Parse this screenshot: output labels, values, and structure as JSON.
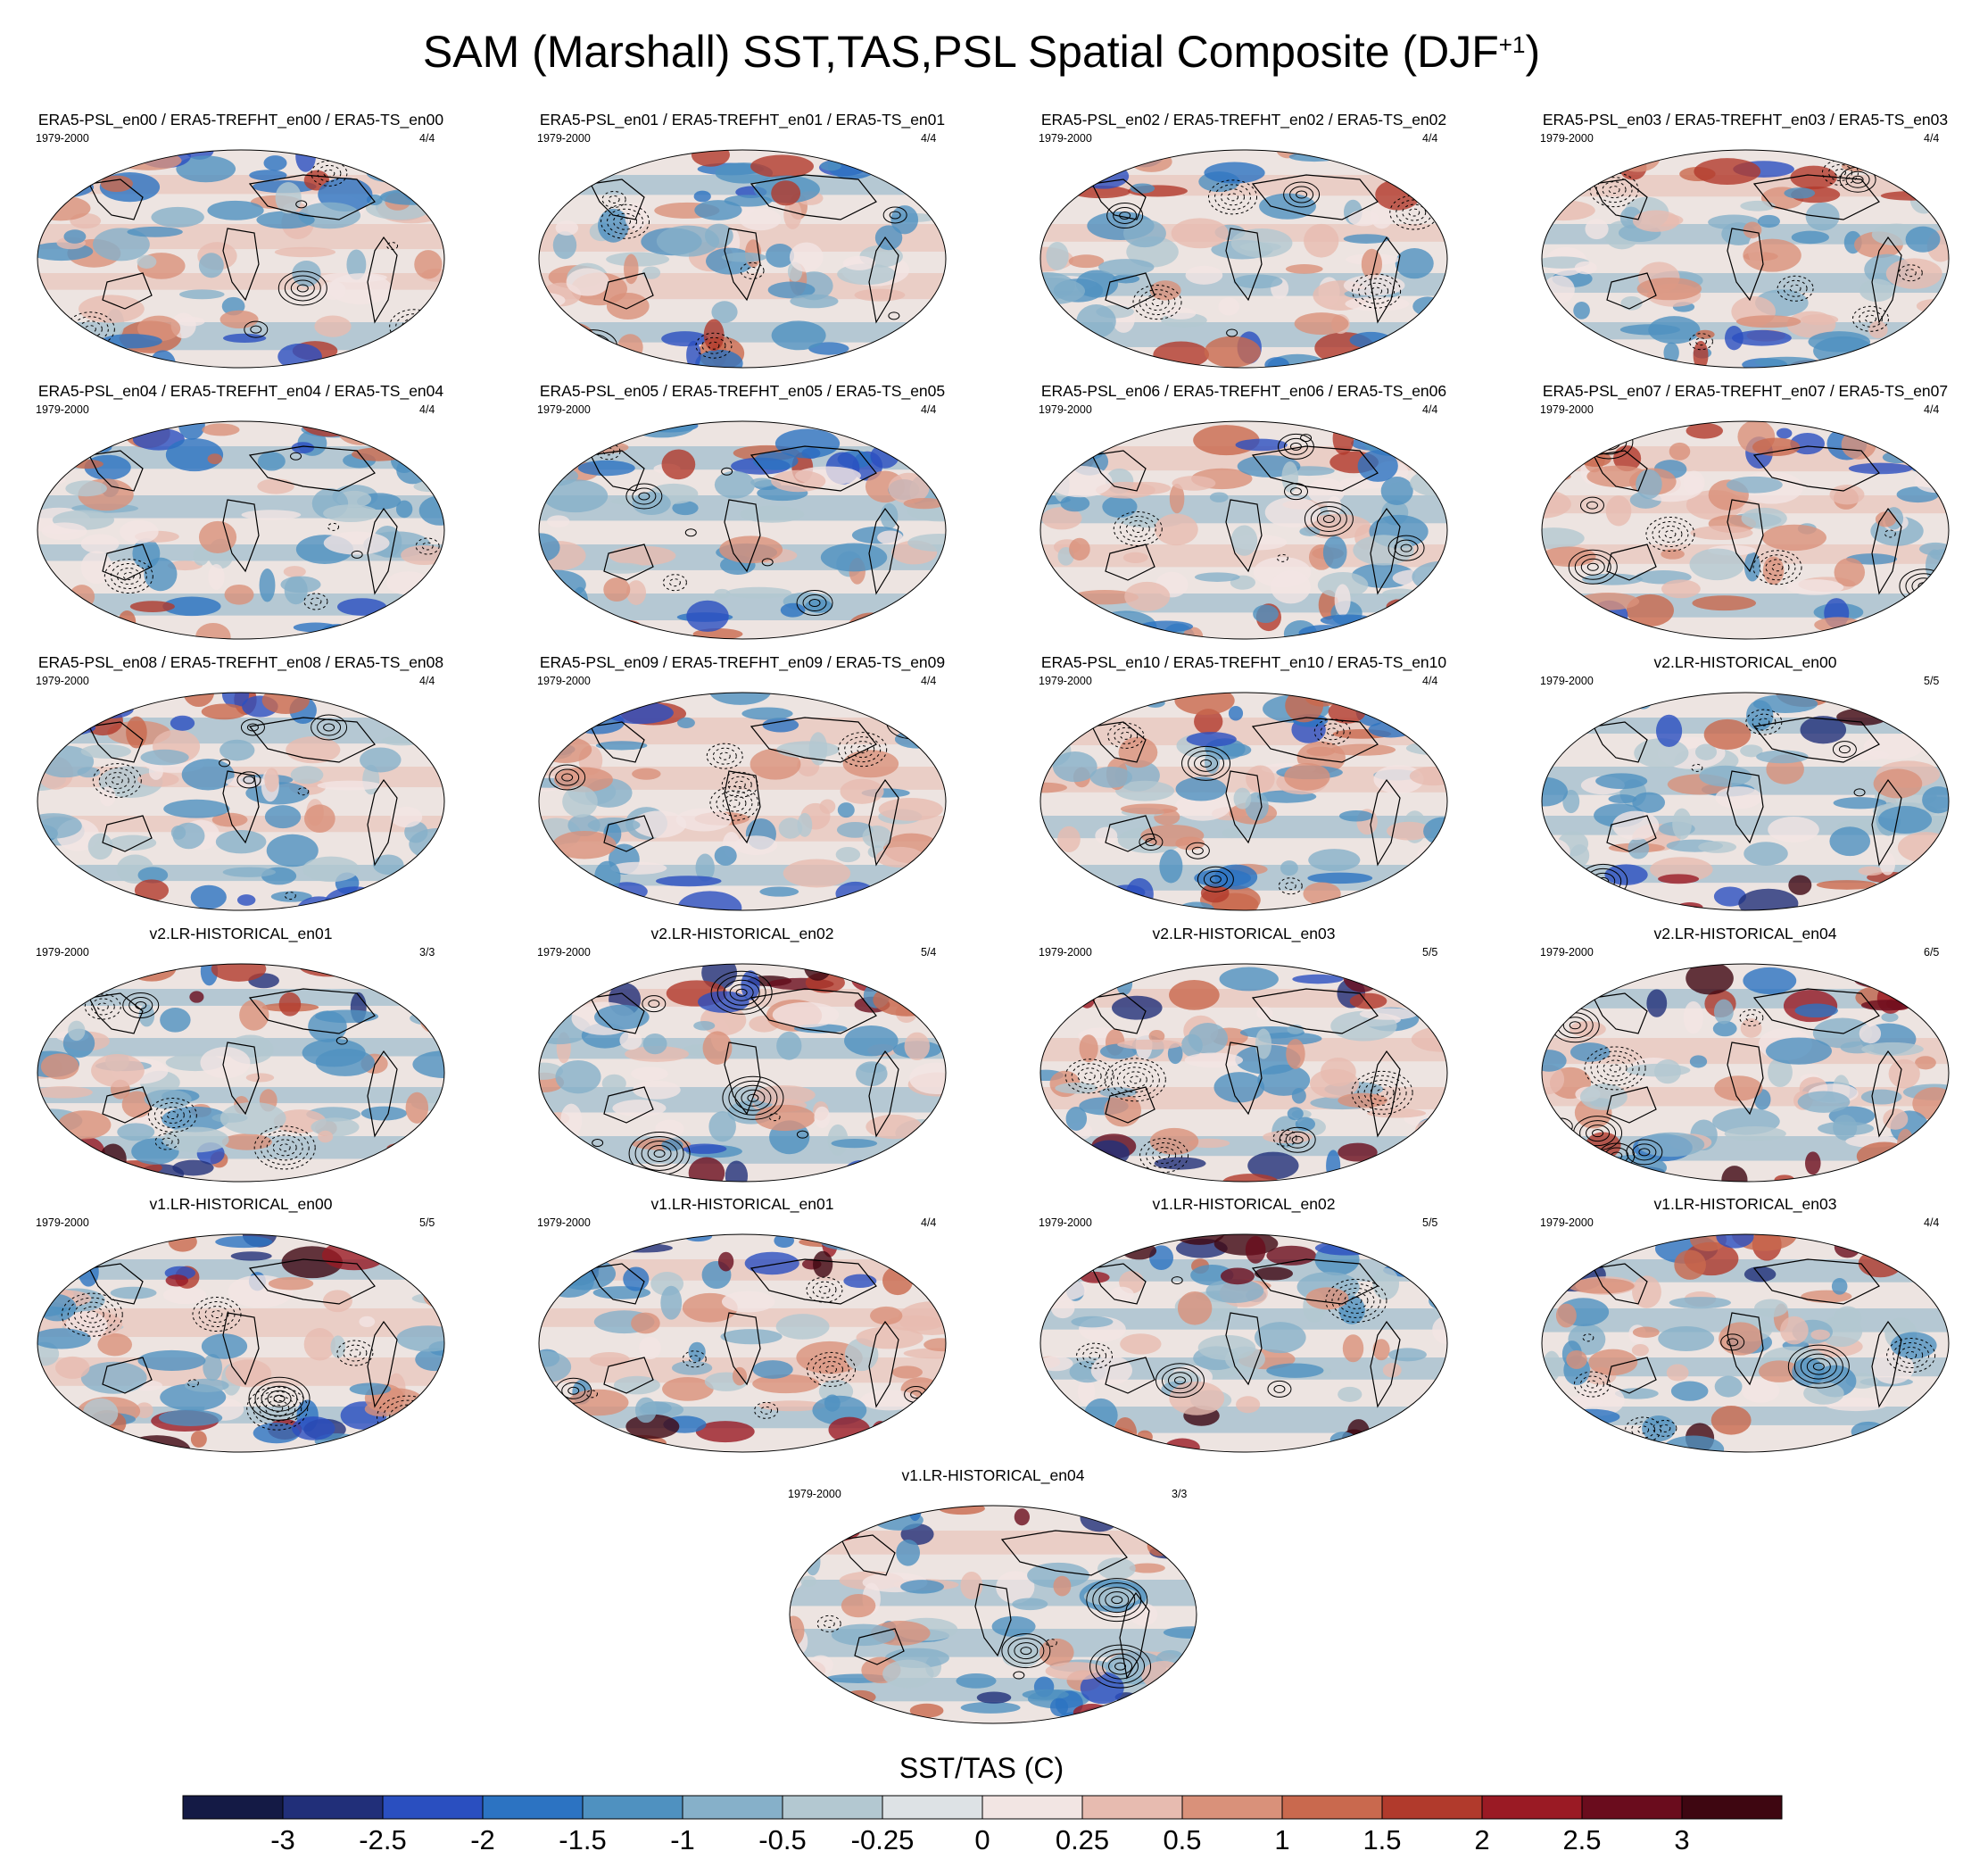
{
  "title_main": "SAM (Marshall) SST,TAS,PSL Spatial Composite (DJF",
  "title_sup": "+1",
  "title_close": ")",
  "colorbar": {
    "label": "SST/TAS (C)",
    "colors": [
      "#141a45",
      "#212f79",
      "#2a4fc0",
      "#2c73c2",
      "#4f91c0",
      "#86b0c9",
      "#b3c8d1",
      "#dde2e5",
      "#f2e5e3",
      "#e7bbb0",
      "#d9917a",
      "#c9694e",
      "#b13a2c",
      "#9a1a24",
      "#6a0c1d",
      "#3e0611"
    ],
    "tick_labels": [
      "-3",
      "-2.5",
      "-2",
      "-1.5",
      "-1",
      "-0.5",
      "-0.25",
      "0",
      "0.25",
      "0.5",
      "1",
      "1.5",
      "2",
      "2.5",
      "3"
    ]
  },
  "chart_data": {
    "type": "heatmap",
    "title": "SAM (Marshall) SST,TAS,PSL Spatial Composite (DJF+1)",
    "variable_shaded": "SST/TAS",
    "units": "C",
    "levels": [
      -3,
      -2.5,
      -2,
      -1.5,
      -1,
      -0.5,
      -0.25,
      0,
      0.25,
      0.5,
      1,
      1.5,
      2,
      2.5,
      3
    ],
    "contours": "PSL",
    "panels": [
      {
        "title": "ERA5-PSL_en00 / ERA5-TREFHT_en00 / ERA5-TS_en00",
        "period": "1979-2000",
        "count": "4/4"
      },
      {
        "title": "ERA5-PSL_en01 / ERA5-TREFHT_en01 / ERA5-TS_en01",
        "period": "1979-2000",
        "count": "4/4"
      },
      {
        "title": "ERA5-PSL_en02 / ERA5-TREFHT_en02 / ERA5-TS_en02",
        "period": "1979-2000",
        "count": "4/4"
      },
      {
        "title": "ERA5-PSL_en03 / ERA5-TREFHT_en03 / ERA5-TS_en03",
        "period": "1979-2000",
        "count": "4/4"
      },
      {
        "title": "ERA5-PSL_en04 / ERA5-TREFHT_en04 / ERA5-TS_en04",
        "period": "1979-2000",
        "count": "4/4"
      },
      {
        "title": "ERA5-PSL_en05 / ERA5-TREFHT_en05 / ERA5-TS_en05",
        "period": "1979-2000",
        "count": "4/4"
      },
      {
        "title": "ERA5-PSL_en06 / ERA5-TREFHT_en06 / ERA5-TS_en06",
        "period": "1979-2000",
        "count": "4/4"
      },
      {
        "title": "ERA5-PSL_en07 / ERA5-TREFHT_en07 / ERA5-TS_en07",
        "period": "1979-2000",
        "count": "4/4"
      },
      {
        "title": "ERA5-PSL_en08 / ERA5-TREFHT_en08 / ERA5-TS_en08",
        "period": "1979-2000",
        "count": "4/4"
      },
      {
        "title": "ERA5-PSL_en09 / ERA5-TREFHT_en09 / ERA5-TS_en09",
        "period": "1979-2000",
        "count": "4/4"
      },
      {
        "title": "ERA5-PSL_en10 / ERA5-TREFHT_en10 / ERA5-TS_en10",
        "period": "1979-2000",
        "count": "4/4"
      },
      {
        "title": "v2.LR-HISTORICAL_en00",
        "period": "1979-2000",
        "count": "5/5"
      },
      {
        "title": "v2.LR-HISTORICAL_en01",
        "period": "1979-2000",
        "count": "3/3"
      },
      {
        "title": "v2.LR-HISTORICAL_en02",
        "period": "1979-2000",
        "count": "5/4"
      },
      {
        "title": "v2.LR-HISTORICAL_en03",
        "period": "1979-2000",
        "count": "5/5"
      },
      {
        "title": "v2.LR-HISTORICAL_en04",
        "period": "1979-2000",
        "count": "6/5"
      },
      {
        "title": "v1.LR-HISTORICAL_en00",
        "period": "1979-2000",
        "count": "5/5"
      },
      {
        "title": "v1.LR-HISTORICAL_en01",
        "period": "1979-2000",
        "count": "4/4"
      },
      {
        "title": "v1.LR-HISTORICAL_en02",
        "period": "1979-2000",
        "count": "5/5"
      },
      {
        "title": "v1.LR-HISTORICAL_en03",
        "period": "1979-2000",
        "count": "4/4"
      },
      {
        "title": "v1.LR-HISTORICAL_en04",
        "period": "1979-2000",
        "count": "3/3"
      }
    ]
  }
}
